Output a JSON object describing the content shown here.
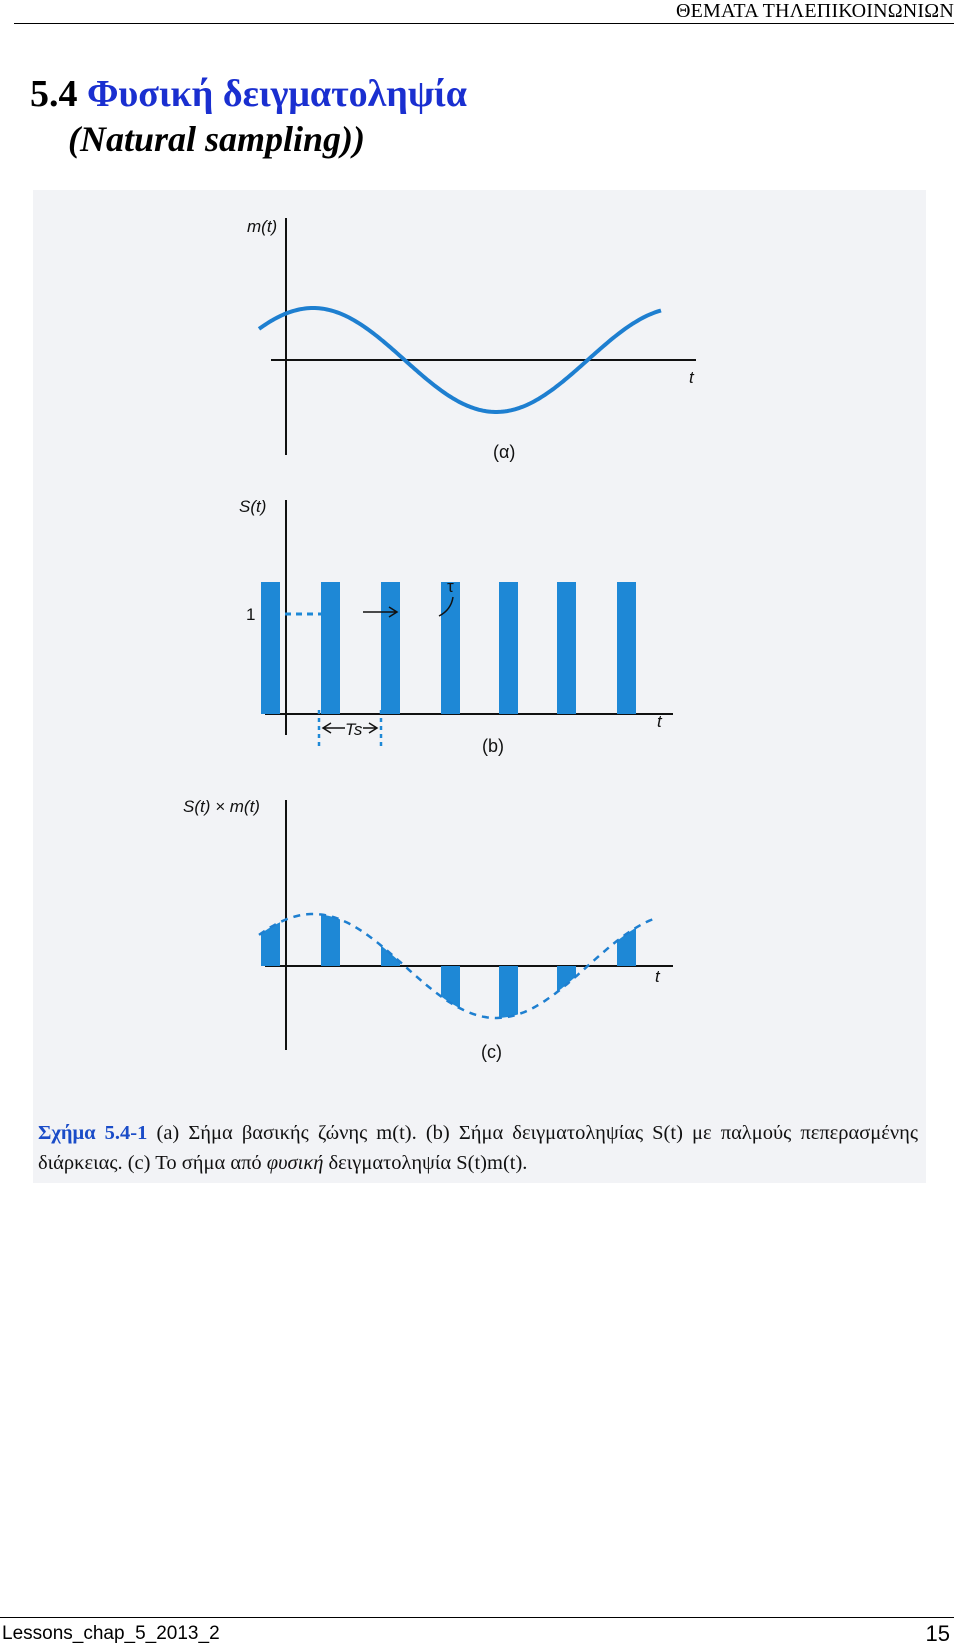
{
  "header": {
    "title": "ΘΕΜΑΤΑ ΤΗΛΕΠΙΚΟΙΝΩΝΙΩΝ"
  },
  "section": {
    "number": "5.4",
    "title_greek": "Φυσική δειγματοληψία",
    "title_english": "(Natural sampling))"
  },
  "figure": {
    "panels": {
      "a": {
        "ylabel": "m(t)",
        "xlabel": "t",
        "label": "(α)"
      },
      "b": {
        "ylabel": "S(t)",
        "xlabel": "t",
        "label": "(b)",
        "level_label": "1",
        "tau_label": "τ",
        "period_label": "Ts"
      },
      "c": {
        "ylabel": "S(t) × m(t)",
        "xlabel": "t",
        "label": "(c)"
      }
    },
    "caption": {
      "label": "Σχήμα 5.4-1",
      "text": "(a) Σήμα βασικής ζώνης m(t). (b) Σήμα δειγματοληψίας S(t) με παλμούς πεπερασμένης διάρκειας. (c) Το σήμα από",
      "emph": "φυσική",
      "text_end": "δειγματοληψία S(t)m(t)."
    },
    "colors": {
      "signal": "#1e7fd0",
      "pulse": "#1e88d6",
      "axis": "#111111"
    }
  },
  "footer": {
    "left": "Lessons_chap_5_2013_2",
    "page": "15"
  }
}
